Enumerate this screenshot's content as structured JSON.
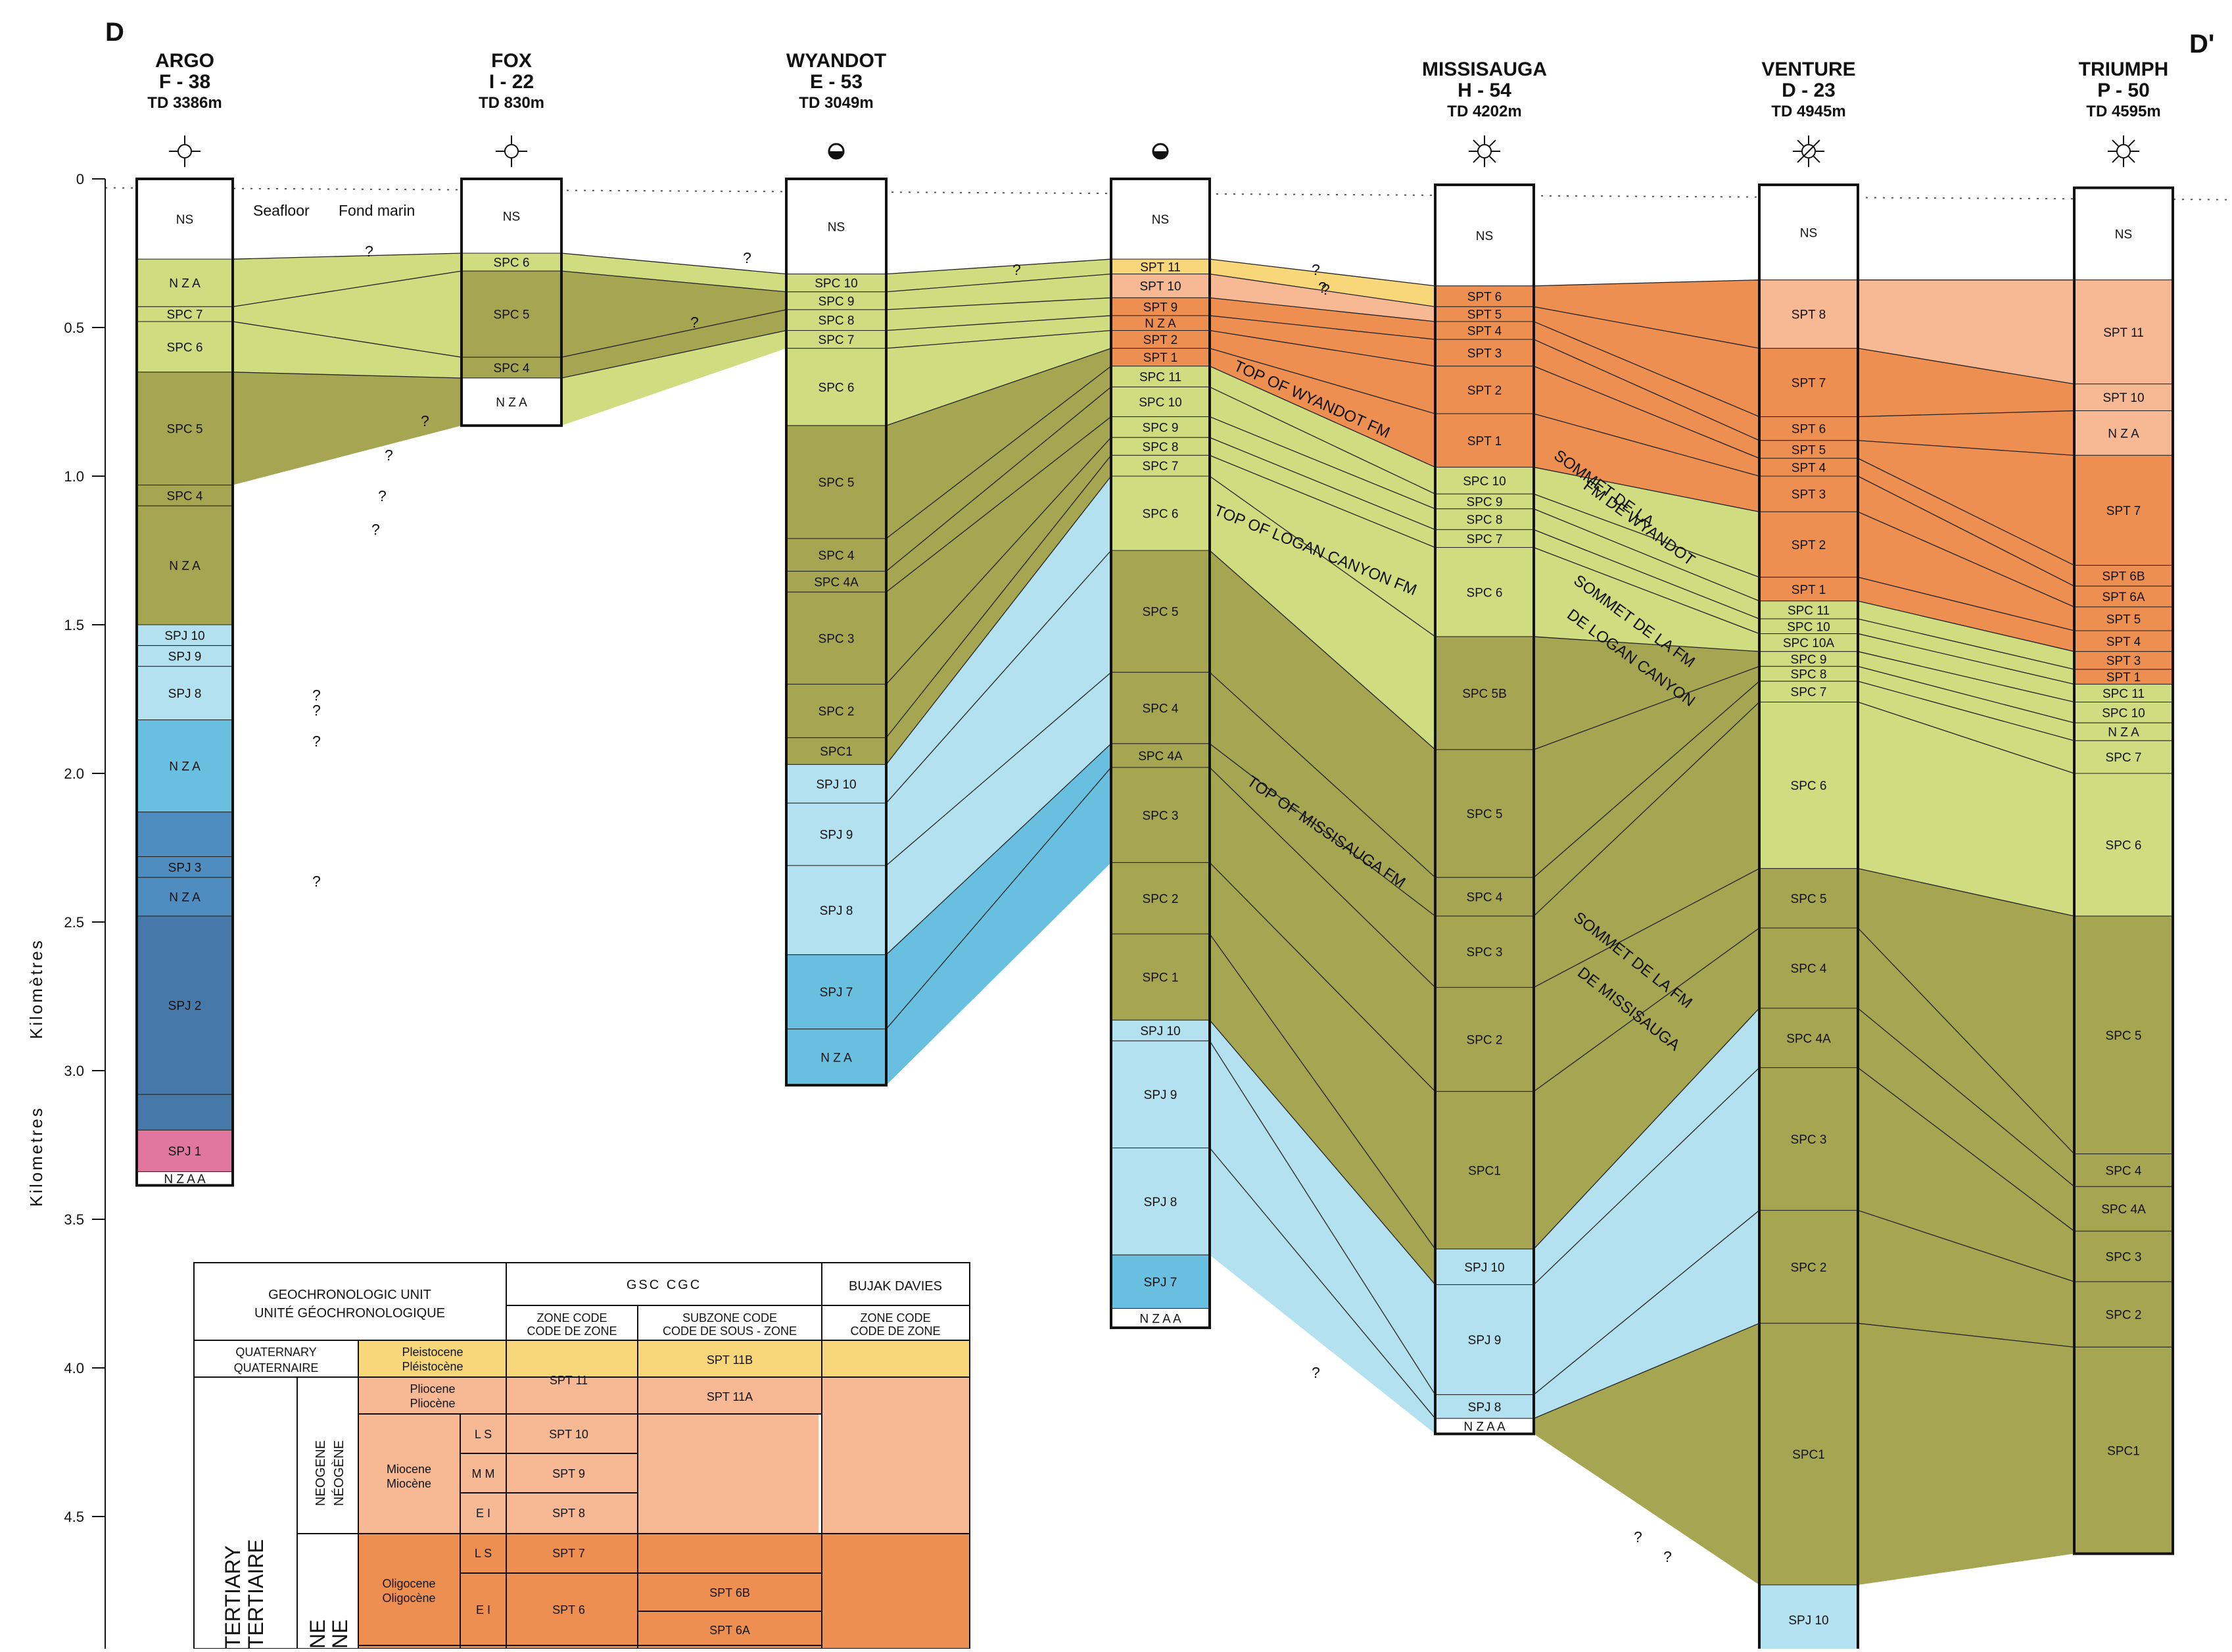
{
  "section": {
    "start_label": "D",
    "end_label": "D'"
  },
  "axis": {
    "title_fr": "Kilomètres",
    "title_en": "Kilometres",
    "ticks": [
      "0",
      "0.5",
      "1.0",
      "1.5",
      "2.0",
      "2.5",
      "3.0",
      "3.5",
      "4.0",
      "4.5"
    ]
  },
  "seafloor_label_en": "Seafloor",
  "seafloor_label_fr": "Fond marin",
  "colors": {
    "NS": "#ffffff",
    "SPT11": "#f7d77a",
    "SPT_light": "#f6b994",
    "SPT_dark": "#ee8f52",
    "SPC_light": "#cfdc7f",
    "SPC_dark": "#a6a552",
    "SPJ_light": "#b3e1ef",
    "SPJ_mid": "#69bfe0",
    "SPJ_dark": "#4f8cbf",
    "SPJ_deep": "#4678aa",
    "SPJ_pink": "#e1779c"
  },
  "wells": [
    {
      "name": "ARGO",
      "id": "F - 38",
      "td": "TD 3386m",
      "symbol": "gas-show-icon",
      "total_depth_km": 3.386,
      "zones": [
        {
          "label": "NS",
          "top": 0.0,
          "color": "NS"
        },
        {
          "label": "N Z A",
          "top": 0.27,
          "color": "SPC_light"
        },
        {
          "label": "SPC 7",
          "top": 0.43,
          "color": "SPC_light"
        },
        {
          "label": "SPC 6",
          "top": 0.48,
          "color": "SPC_light"
        },
        {
          "label": "SPC 5",
          "top": 0.65,
          "color": "SPC_dark"
        },
        {
          "label": "SPC 4",
          "top": 1.03,
          "color": "SPC_dark"
        },
        {
          "label": "N Z A",
          "top": 1.1,
          "color": "SPC_dark"
        },
        {
          "label": "SPJ 10",
          "top": 1.5,
          "color": "SPJ_light"
        },
        {
          "label": "SPJ 9",
          "top": 1.57,
          "color": "SPJ_light"
        },
        {
          "label": "SPJ 8",
          "top": 1.64,
          "color": "SPJ_light"
        },
        {
          "label": "N Z A",
          "top": 1.82,
          "color": "SPJ_mid"
        },
        {
          "label": "",
          "top": 2.13,
          "color": "SPJ_dark"
        },
        {
          "label": "SPJ 3",
          "top": 2.28,
          "color": "SPJ_dark"
        },
        {
          "label": "N Z A",
          "top": 2.35,
          "color": "SPJ_dark"
        },
        {
          "label": "SPJ 2",
          "top": 2.48,
          "color": "SPJ_deep"
        },
        {
          "label": "",
          "top": 3.08,
          "color": "SPJ_deep"
        },
        {
          "label": "SPJ 1",
          "top": 3.2,
          "color": "SPJ_pink"
        },
        {
          "label": "N Z A A",
          "top": 3.34,
          "color": "NS"
        }
      ]
    },
    {
      "name": "FOX",
      "id": "I - 22",
      "td": "TD 830m",
      "symbol": "gas-show-icon",
      "total_depth_km": 0.83,
      "zones": [
        {
          "label": "NS",
          "top": 0.0,
          "color": "NS"
        },
        {
          "label": "SPC 6",
          "top": 0.25,
          "color": "SPC_light"
        },
        {
          "label": "SPC 5",
          "top": 0.31,
          "color": "SPC_dark"
        },
        {
          "label": "SPC 4",
          "top": 0.6,
          "color": "SPC_dark"
        },
        {
          "label": "N Z A",
          "top": 0.67,
          "color": "NS"
        }
      ]
    },
    {
      "name": "WYANDOT",
      "id": "E - 53",
      "td": "TD 3049m",
      "symbol": "oil-gas-show-icon",
      "total_depth_km": 3.049,
      "zones": [
        {
          "label": "NS",
          "top": 0.0,
          "color": "NS"
        },
        {
          "label": "SPC 10",
          "top": 0.32,
          "color": "SPC_light"
        },
        {
          "label": "SPC 9",
          "top": 0.38,
          "color": "SPC_light"
        },
        {
          "label": "SPC 8",
          "top": 0.44,
          "color": "SPC_light"
        },
        {
          "label": "SPC 7",
          "top": 0.51,
          "color": "SPC_light"
        },
        {
          "label": "SPC 6",
          "top": 0.57,
          "color": "SPC_light"
        },
        {
          "label": "SPC 5",
          "top": 0.83,
          "color": "SPC_dark"
        },
        {
          "label": "SPC 4",
          "top": 1.21,
          "color": "SPC_dark"
        },
        {
          "label": "SPC 4A",
          "top": 1.32,
          "color": "SPC_dark"
        },
        {
          "label": "SPC 3",
          "top": 1.39,
          "color": "SPC_dark"
        },
        {
          "label": "SPC 2",
          "top": 1.7,
          "color": "SPC_dark"
        },
        {
          "label": "SPC1",
          "top": 1.88,
          "color": "SPC_dark"
        },
        {
          "label": "SPJ 10",
          "top": 1.97,
          "color": "SPJ_light"
        },
        {
          "label": "SPJ 9",
          "top": 2.1,
          "color": "SPJ_light"
        },
        {
          "label": "SPJ 8",
          "top": 2.31,
          "color": "SPJ_light"
        },
        {
          "label": "SPJ 7",
          "top": 2.61,
          "color": "SPJ_mid"
        },
        {
          "label": "N Z A",
          "top": 2.86,
          "color": "SPJ_mid"
        }
      ]
    },
    {
      "name": "",
      "id": "",
      "td": "",
      "symbol": "oil-gas-show-icon",
      "total_depth_km": 3.865,
      "zones": [
        {
          "label": "NS",
          "top": 0.0,
          "color": "NS"
        },
        {
          "label": "SPT 11",
          "top": 0.27,
          "color": "SPT11"
        },
        {
          "label": "SPT 10",
          "top": 0.32,
          "color": "SPT_light"
        },
        {
          "label": "SPT 9",
          "top": 0.4,
          "color": "SPT_dark"
        },
        {
          "label": "N Z A",
          "top": 0.46,
          "color": "SPT_dark"
        },
        {
          "label": "SPT 2",
          "top": 0.51,
          "color": "SPT_dark"
        },
        {
          "label": "SPT 1",
          "top": 0.57,
          "color": "SPT_dark"
        },
        {
          "label": "SPC 11",
          "top": 0.63,
          "color": "SPC_light"
        },
        {
          "label": "SPC 10",
          "top": 0.7,
          "color": "SPC_light"
        },
        {
          "label": "SPC 9",
          "top": 0.8,
          "color": "SPC_light"
        },
        {
          "label": "SPC 8",
          "top": 0.87,
          "color": "SPC_light"
        },
        {
          "label": "SPC 7",
          "top": 0.93,
          "color": "SPC_light"
        },
        {
          "label": "SPC 6",
          "top": 1.0,
          "color": "SPC_light"
        },
        {
          "label": "SPC 5",
          "top": 1.25,
          "color": "SPC_dark"
        },
        {
          "label": "SPC 4",
          "top": 1.66,
          "color": "SPC_dark"
        },
        {
          "label": "SPC 4A",
          "top": 1.9,
          "color": "SPC_dark"
        },
        {
          "label": "SPC 3",
          "top": 1.98,
          "color": "SPC_dark"
        },
        {
          "label": "SPC 2",
          "top": 2.3,
          "color": "SPC_dark"
        },
        {
          "label": "SPC 1",
          "top": 2.54,
          "color": "SPC_dark"
        },
        {
          "label": "SPJ 10",
          "top": 2.83,
          "color": "SPJ_light"
        },
        {
          "label": "SPJ 9",
          "top": 2.9,
          "color": "SPJ_light"
        },
        {
          "label": "SPJ 8",
          "top": 3.26,
          "color": "SPJ_light"
        },
        {
          "label": "SPJ 7",
          "top": 3.62,
          "color": "SPJ_mid"
        },
        {
          "label": "N Z A A",
          "top": 3.8,
          "color": "NS"
        }
      ]
    },
    {
      "name": "MISSISAUGA",
      "id": "H - 54",
      "td": "TD 4202m",
      "symbol": "gas-well-icon",
      "total_depth_km": 4.202,
      "zones": [
        {
          "label": "NS",
          "top": 0.0,
          "color": "NS"
        },
        {
          "label": "SPT 6",
          "top": 0.34,
          "color": "SPT_dark"
        },
        {
          "label": "SPT 5",
          "top": 0.41,
          "color": "SPT_dark"
        },
        {
          "label": "SPT 4",
          "top": 0.46,
          "color": "SPT_dark"
        },
        {
          "label": "SPT 3",
          "top": 0.52,
          "color": "SPT_dark"
        },
        {
          "label": "SPT 2",
          "top": 0.61,
          "color": "SPT_dark"
        },
        {
          "label": "SPT 1",
          "top": 0.77,
          "color": "SPT_dark"
        },
        {
          "label": "SPC 10",
          "top": 0.95,
          "color": "SPC_light"
        },
        {
          "label": "SPC 9",
          "top": 1.04,
          "color": "SPC_light"
        },
        {
          "label": "SPC 8",
          "top": 1.09,
          "color": "SPC_light"
        },
        {
          "label": "SPC 7",
          "top": 1.16,
          "color": "SPC_light"
        },
        {
          "label": "SPC 6",
          "top": 1.22,
          "color": "SPC_light"
        },
        {
          "label": "SPC 5B",
          "top": 1.52,
          "color": "SPC_dark"
        },
        {
          "label": "SPC 5",
          "top": 1.9,
          "color": "SPC_dark"
        },
        {
          "label": "SPC 4",
          "top": 2.33,
          "color": "SPC_dark"
        },
        {
          "label": "SPC 3",
          "top": 2.46,
          "color": "SPC_dark"
        },
        {
          "label": "SPC 2",
          "top": 2.7,
          "color": "SPC_dark"
        },
        {
          "label": "SPC1",
          "top": 3.05,
          "color": "SPC_dark"
        },
        {
          "label": "SPJ 10",
          "top": 3.58,
          "color": "SPJ_light"
        },
        {
          "label": "SPJ 9",
          "top": 3.7,
          "color": "SPJ_light"
        },
        {
          "label": "SPJ 8",
          "top": 4.07,
          "color": "SPJ_light"
        },
        {
          "label": "N Z A A",
          "top": 4.15,
          "color": "NS"
        }
      ]
    },
    {
      "name": "VENTURE",
      "id": "D - 23",
      "td": "TD 4945m",
      "symbol": "gas-well-abandoned-icon",
      "total_depth_km": 4.945,
      "zones": [
        {
          "label": "NS",
          "top": 0.0,
          "color": "NS"
        },
        {
          "label": "SPT 8",
          "top": 0.32,
          "color": "SPT_light"
        },
        {
          "label": "SPT 7",
          "top": 0.55,
          "color": "SPT_dark"
        },
        {
          "label": "SPT 6",
          "top": 0.78,
          "color": "SPT_dark"
        },
        {
          "label": "SPT 5",
          "top": 0.86,
          "color": "SPT_dark"
        },
        {
          "label": "SPT 4",
          "top": 0.92,
          "color": "SPT_dark"
        },
        {
          "label": "SPT 3",
          "top": 0.98,
          "color": "SPT_dark"
        },
        {
          "label": "SPT 2",
          "top": 1.1,
          "color": "SPT_dark"
        },
        {
          "label": "SPT 1",
          "top": 1.32,
          "color": "SPT_dark"
        },
        {
          "label": "SPC 11",
          "top": 1.4,
          "color": "SPC_light"
        },
        {
          "label": "SPC 10",
          "top": 1.46,
          "color": "SPC_light"
        },
        {
          "label": "SPC 10A",
          "top": 1.51,
          "color": "SPC_light"
        },
        {
          "label": "SPC 9",
          "top": 1.57,
          "color": "SPC_light"
        },
        {
          "label": "SPC 8",
          "top": 1.62,
          "color": "SPC_light"
        },
        {
          "label": "SPC 7",
          "top": 1.67,
          "color": "SPC_light"
        },
        {
          "label": "SPC 6",
          "top": 1.74,
          "color": "SPC_light"
        },
        {
          "label": "SPC 5",
          "top": 2.3,
          "color": "SPC_dark"
        },
        {
          "label": "SPC 4",
          "top": 2.5,
          "color": "SPC_dark"
        },
        {
          "label": "SPC 4A",
          "top": 2.77,
          "color": "SPC_dark"
        },
        {
          "label": "SPC 3",
          "top": 2.97,
          "color": "SPC_dark"
        },
        {
          "label": "SPC 2",
          "top": 3.45,
          "color": "SPC_dark"
        },
        {
          "label": "SPC1",
          "top": 3.83,
          "color": "SPC_dark"
        },
        {
          "label": "SPJ 10",
          "top": 4.71,
          "color": "SPJ_light"
        }
      ]
    },
    {
      "name": "TRIUMPH",
      "id": "P - 50",
      "td": "TD 4595m",
      "symbol": "gas-well-icon",
      "total_depth_km": 4.595,
      "zones": [
        {
          "label": "NS",
          "top": 0.0,
          "color": "NS"
        },
        {
          "label": "SPT 11",
          "top": 0.31,
          "color": "SPT_light"
        },
        {
          "label": "SPT 10",
          "top": 0.66,
          "color": "SPT_light"
        },
        {
          "label": "N Z A",
          "top": 0.75,
          "color": "SPT_light"
        },
        {
          "label": "SPT 7",
          "top": 0.9,
          "color": "SPT_dark"
        },
        {
          "label": "SPT 6B",
          "top": 1.27,
          "color": "SPT_dark"
        },
        {
          "label": "SPT 6A",
          "top": 1.34,
          "color": "SPT_dark"
        },
        {
          "label": "SPT 5",
          "top": 1.41,
          "color": "SPT_dark"
        },
        {
          "label": "SPT 4",
          "top": 1.49,
          "color": "SPT_dark"
        },
        {
          "label": "SPT 3",
          "top": 1.56,
          "color": "SPT_dark"
        },
        {
          "label": "SPT 1",
          "top": 1.62,
          "color": "SPT_dark"
        },
        {
          "label": "SPC 11",
          "top": 1.67,
          "color": "SPC_light"
        },
        {
          "label": "SPC 10",
          "top": 1.73,
          "color": "SPC_light"
        },
        {
          "label": "N Z A",
          "top": 1.8,
          "color": "SPC_light"
        },
        {
          "label": "SPC 7",
          "top": 1.86,
          "color": "SPC_light"
        },
        {
          "label": "SPC 6",
          "top": 1.97,
          "color": "SPC_light"
        },
        {
          "label": "SPC 5",
          "top": 2.45,
          "color": "SPC_dark"
        },
        {
          "label": "SPC 4",
          "top": 3.25,
          "color": "SPC_dark"
        },
        {
          "label": "SPC 4A",
          "top": 3.36,
          "color": "SPC_dark"
        },
        {
          "label": "SPC 3",
          "top": 3.51,
          "color": "SPC_dark"
        },
        {
          "label": "SPC 2",
          "top": 3.68,
          "color": "SPC_dark"
        },
        {
          "label": "SPC1",
          "top": 3.9,
          "color": "SPC_dark"
        }
      ]
    }
  ],
  "formation_tops": [
    {
      "en": "TOP OF WYANDOT FM",
      "fr_1": "SOMMET DE LA",
      "fr_2": "FM DE WYANDOT"
    },
    {
      "en": "TOP OF LOGAN CANYON FM",
      "fr_1": "SOMMET DE LA FM",
      "fr_2": "DE LOGAN CANYON"
    },
    {
      "en": "TOP OF MISSISAUGA FM",
      "fr_1": "SOMMET DE LA FM",
      "fr_2": "DE MISSISAUGA"
    }
  ],
  "uncertain_mark": "?",
  "legend": {
    "geochron_en": "GEOCHRONOLOGIC UNIT",
    "geochron_fr": "UNITÉ GÉOCHRONOLOGIQUE",
    "gsc": "GSC   CGC",
    "bujak": "BUJAK DAVIES",
    "zone_code_en": "ZONE CODE",
    "zone_code_fr": "CODE DE ZONE",
    "subzone_en": "SUBZONE CODE",
    "subzone_fr": "CODE DE SOUS - ZONE",
    "zone_code2_en": "ZONE CODE",
    "zone_code2_fr": "CODE DE ZONE",
    "quaternary_en": "QUATERNARY",
    "quaternary_fr": "QUATERNAIRE",
    "pleistocene_en": "Pleistocene",
    "pleistocene_fr": "Pléistocène",
    "pliocene_en": "Pliocene",
    "pliocene_fr": "Pliocène",
    "miocene_en": "Miocene",
    "miocene_fr": "Miocène",
    "oligocene_en": "Oligocene",
    "oligocene_fr": "Oligocène",
    "neogene_en": "NEOGENE",
    "neogene_fr": "NÉOGÈNE",
    "tertiary_en": "TERTIARY",
    "tertiary_fr": "TERTIAIRE",
    "paleogene_partial_en": "NE",
    "paleogene_partial_fr": "NE",
    "ls": "L  S",
    "mm": "M  M",
    "ei": "E  I",
    "spt11": "SPT 11",
    "spt10": "SPT 10",
    "spt9": "SPT 9",
    "spt8": "SPT 8",
    "spt7": "SPT 7",
    "spt6": "SPT 6",
    "spt11b": "SPT 11B",
    "spt11a": "SPT 11A",
    "spt6b": "SPT 6B",
    "spt6a": "SPT 6A"
  }
}
